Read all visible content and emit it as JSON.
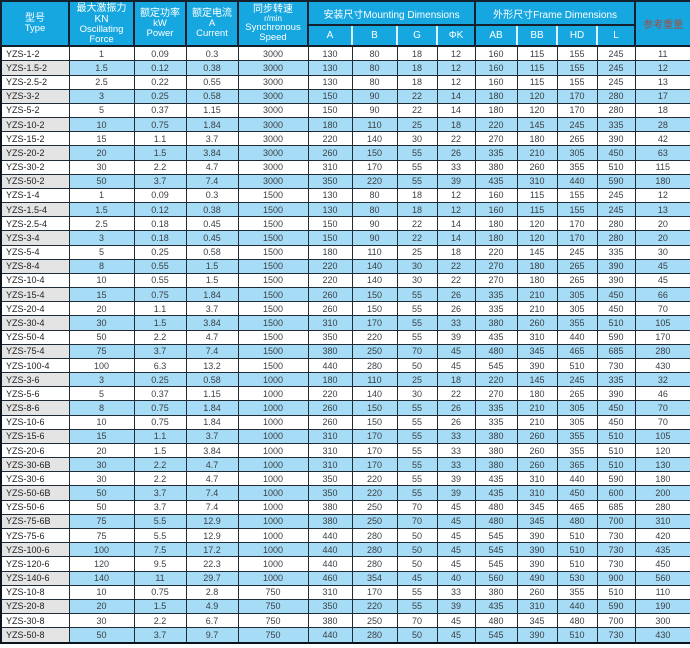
{
  "header": {
    "type_zh": "型号",
    "type_en": "Type",
    "force_zh": "最大激振力KN",
    "force_en1": "Oscillating",
    "force_en2": "Force",
    "power_zh": "额定功率",
    "power_unit": "kW",
    "power_en": "Power",
    "current_zh": "额定电流",
    "current_unit": "A",
    "current_en": "Current",
    "speed_zh": "同步转速",
    "speed_unit": "r/min",
    "speed_en1": "Synchronous",
    "speed_en2": "Speed",
    "mounting_group": "安装尺寸Mounting Dimensions",
    "frame_group": "外形尺寸Frame Dimensions",
    "mounting_cols": [
      "A",
      "B",
      "G",
      "ΦK"
    ],
    "frame_cols": [
      "AB",
      "BB",
      "HD",
      "L"
    ],
    "weight": "参考重量"
  },
  "colors": {
    "header_bg": "#17a7e0",
    "row_alt_bg": "#a6dcf6",
    "type_cell_alt_bg": "#e4e4e4",
    "grid_border": "#202b36",
    "header_divider_light": "#d7eefb",
    "weight_header_text": "#9b5044",
    "header_text": "#ffffff"
  },
  "chart_data": {
    "type": "table",
    "columns": [
      "型号 Type",
      "最大激振力KN Oscillating Force",
      "额定功率 kW Power",
      "额定电流 A Current",
      "同步转速 r/min Synchronous Speed",
      "A",
      "B",
      "G",
      "ΦK",
      "AB",
      "BB",
      "HD",
      "L",
      "参考重量"
    ],
    "column_groups": [
      {
        "label": "安装尺寸Mounting Dimensions",
        "span": [
          "A",
          "B",
          "G",
          "ΦK"
        ]
      },
      {
        "label": "外形尺寸Frame Dimensions",
        "span": [
          "AB",
          "BB",
          "HD",
          "L"
        ]
      }
    ],
    "rows": [
      [
        "YZS-1-2",
        "1",
        "0.09",
        "0.3",
        "3000",
        "130",
        "80",
        "18",
        "12",
        "160",
        "115",
        "155",
        "245",
        "11"
      ],
      [
        "YZS-1.5-2",
        "1.5",
        "0.12",
        "0.38",
        "3000",
        "130",
        "80",
        "18",
        "12",
        "160",
        "115",
        "155",
        "245",
        "12"
      ],
      [
        "YZS-2.5-2",
        "2.5",
        "0.22",
        "0.55",
        "3000",
        "130",
        "80",
        "18",
        "12",
        "160",
        "115",
        "155",
        "245",
        "13"
      ],
      [
        "YZS-3-2",
        "3",
        "0.25",
        "0.58",
        "3000",
        "150",
        "90",
        "22",
        "14",
        "180",
        "120",
        "170",
        "280",
        "17"
      ],
      [
        "YZS-5-2",
        "5",
        "0.37",
        "1.15",
        "3000",
        "150",
        "90",
        "22",
        "14",
        "180",
        "120",
        "170",
        "280",
        "18"
      ],
      [
        "YZS-10-2",
        "10",
        "0.75",
        "1.84",
        "3000",
        "180",
        "110",
        "25",
        "18",
        "220",
        "145",
        "245",
        "335",
        "28"
      ],
      [
        "YZS-15-2",
        "15",
        "1.1",
        "3.7",
        "3000",
        "220",
        "140",
        "30",
        "22",
        "270",
        "180",
        "265",
        "390",
        "42"
      ],
      [
        "YZS-20-2",
        "20",
        "1.5",
        "3.84",
        "3000",
        "260",
        "150",
        "55",
        "26",
        "335",
        "210",
        "305",
        "450",
        "63"
      ],
      [
        "YZS-30-2",
        "30",
        "2.2",
        "4.7",
        "3000",
        "310",
        "170",
        "55",
        "33",
        "380",
        "260",
        "355",
        "510",
        "115"
      ],
      [
        "YZS-50-2",
        "50",
        "3.7",
        "7.4",
        "3000",
        "350",
        "220",
        "55",
        "39",
        "435",
        "310",
        "440",
        "590",
        "180"
      ],
      [
        "YZS-1-4",
        "1",
        "0.09",
        "0.3",
        "1500",
        "130",
        "80",
        "18",
        "12",
        "160",
        "115",
        "155",
        "245",
        "12"
      ],
      [
        "YZS-1.5-4",
        "1.5",
        "0.12",
        "0.38",
        "1500",
        "130",
        "80",
        "18",
        "12",
        "160",
        "115",
        "155",
        "245",
        "13"
      ],
      [
        "YZS-2.5-4",
        "2.5",
        "0.18",
        "0.45",
        "1500",
        "150",
        "90",
        "22",
        "14",
        "180",
        "120",
        "170",
        "280",
        "20"
      ],
      [
        "YZS-3-4",
        "3",
        "0.18",
        "0.45",
        "1500",
        "150",
        "90",
        "22",
        "14",
        "180",
        "120",
        "170",
        "280",
        "20"
      ],
      [
        "YZS-5-4",
        "5",
        "0.25",
        "0.58",
        "1500",
        "180",
        "110",
        "25",
        "18",
        "220",
        "145",
        "245",
        "335",
        "30"
      ],
      [
        "YZS-8-4",
        "8",
        "0.55",
        "1.5",
        "1500",
        "220",
        "140",
        "30",
        "22",
        "270",
        "180",
        "265",
        "390",
        "45"
      ],
      [
        "YZS-10-4",
        "10",
        "0.55",
        "1.5",
        "1500",
        "220",
        "140",
        "30",
        "22",
        "270",
        "180",
        "265",
        "390",
        "45"
      ],
      [
        "YZS-15-4",
        "15",
        "0.75",
        "1.84",
        "1500",
        "260",
        "150",
        "55",
        "26",
        "335",
        "210",
        "305",
        "450",
        "66"
      ],
      [
        "YZS-20-4",
        "20",
        "1.1",
        "3.7",
        "1500",
        "260",
        "150",
        "55",
        "26",
        "335",
        "210",
        "305",
        "450",
        "70"
      ],
      [
        "YZS-30-4",
        "30",
        "1.5",
        "3.84",
        "1500",
        "310",
        "170",
        "55",
        "33",
        "380",
        "260",
        "355",
        "510",
        "105"
      ],
      [
        "YZS-50-4",
        "50",
        "2.2",
        "4.7",
        "1500",
        "350",
        "220",
        "55",
        "39",
        "435",
        "310",
        "440",
        "590",
        "170"
      ],
      [
        "YZS-75-4",
        "75",
        "3.7",
        "7.4",
        "1500",
        "380",
        "250",
        "70",
        "45",
        "480",
        "345",
        "465",
        "685",
        "280"
      ],
      [
        "YZS-100-4",
        "100",
        "6.3",
        "13.2",
        "1500",
        "440",
        "280",
        "50",
        "45",
        "545",
        "390",
        "510",
        "730",
        "430"
      ],
      [
        "YZS-3-6",
        "3",
        "0.25",
        "0.58",
        "1000",
        "180",
        "110",
        "25",
        "18",
        "220",
        "145",
        "245",
        "335",
        "32"
      ],
      [
        "YZS-5-6",
        "5",
        "0.37",
        "1.15",
        "1000",
        "220",
        "140",
        "30",
        "22",
        "270",
        "180",
        "265",
        "390",
        "46"
      ],
      [
        "YZS-8-6",
        "8",
        "0.75",
        "1.84",
        "1000",
        "260",
        "150",
        "55",
        "26",
        "335",
        "210",
        "305",
        "450",
        "70"
      ],
      [
        "YZS-10-6",
        "10",
        "0.75",
        "1.84",
        "1000",
        "260",
        "150",
        "55",
        "26",
        "335",
        "210",
        "305",
        "450",
        "70"
      ],
      [
        "YZS-15-6",
        "15",
        "1.1",
        "3.7",
        "1000",
        "310",
        "170",
        "55",
        "33",
        "380",
        "260",
        "355",
        "510",
        "105"
      ],
      [
        "YZS-20-6",
        "20",
        "1.5",
        "3.84",
        "1000",
        "310",
        "170",
        "55",
        "33",
        "380",
        "260",
        "355",
        "510",
        "120"
      ],
      [
        "YZS-30-6B",
        "30",
        "2.2",
        "4.7",
        "1000",
        "310",
        "170",
        "55",
        "33",
        "380",
        "260",
        "365",
        "510",
        "130"
      ],
      [
        "YZS-30-6",
        "30",
        "2.2",
        "4.7",
        "1000",
        "350",
        "220",
        "55",
        "39",
        "435",
        "310",
        "440",
        "590",
        "180"
      ],
      [
        "YZS-50-6B",
        "50",
        "3.7",
        "7.4",
        "1000",
        "350",
        "220",
        "55",
        "39",
        "435",
        "310",
        "450",
        "600",
        "200"
      ],
      [
        "YZS-50-6",
        "50",
        "3.7",
        "7.4",
        "1000",
        "380",
        "250",
        "70",
        "45",
        "480",
        "345",
        "465",
        "685",
        "280"
      ],
      [
        "YZS-75-6B",
        "75",
        "5.5",
        "12.9",
        "1000",
        "380",
        "250",
        "70",
        "45",
        "480",
        "345",
        "480",
        "700",
        "310"
      ],
      [
        "YZS-75-6",
        "75",
        "5.5",
        "12.9",
        "1000",
        "440",
        "280",
        "50",
        "45",
        "545",
        "390",
        "510",
        "730",
        "420"
      ],
      [
        "YZS-100-6",
        "100",
        "7.5",
        "17.2",
        "1000",
        "440",
        "280",
        "50",
        "45",
        "545",
        "390",
        "510",
        "730",
        "435"
      ],
      [
        "YZS-120-6",
        "120",
        "9.5",
        "22.3",
        "1000",
        "440",
        "280",
        "50",
        "45",
        "545",
        "390",
        "510",
        "730",
        "450"
      ],
      [
        "YZS-140-6",
        "140",
        "11",
        "29.7",
        "1000",
        "460",
        "354",
        "45",
        "40",
        "560",
        "490",
        "530",
        "900",
        "560"
      ],
      [
        "YZS-10-8",
        "10",
        "0.75",
        "2.8",
        "750",
        "310",
        "170",
        "55",
        "33",
        "380",
        "260",
        "355",
        "510",
        "110"
      ],
      [
        "YZS-20-8",
        "20",
        "1.5",
        "4.9",
        "750",
        "350",
        "220",
        "55",
        "39",
        "435",
        "310",
        "440",
        "590",
        "190"
      ],
      [
        "YZS-30-8",
        "30",
        "2.2",
        "6.7",
        "750",
        "380",
        "250",
        "70",
        "45",
        "480",
        "345",
        "480",
        "700",
        "300"
      ],
      [
        "YZS-50-8",
        "50",
        "3.7",
        "9.7",
        "750",
        "440",
        "280",
        "50",
        "45",
        "545",
        "390",
        "510",
        "730",
        "430"
      ]
    ]
  }
}
